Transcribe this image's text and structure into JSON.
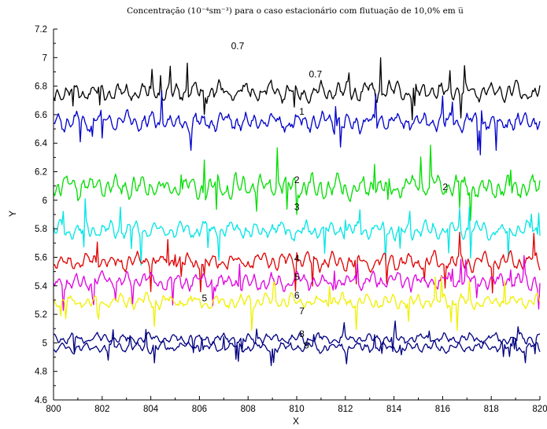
{
  "chart_data": {
    "type": "line",
    "title": "Concentração (10⁻⁴sm⁻³)  para o caso estacionário com flutuação de 10,0% em u̅",
    "xlabel": "X",
    "ylabel": "Y",
    "xlim": [
      800,
      820
    ],
    "ylim": [
      4.6,
      7.2
    ],
    "xticks": [
      "800",
      "802",
      "804",
      "806",
      "808",
      "810",
      "812",
      "814",
      "816",
      "818",
      "820"
    ],
    "yticks": [
      "4.6",
      "4.8",
      "5",
      "5.2",
      "5.4",
      "5.6",
      "5.8",
      "6",
      "6.2",
      "6.4",
      "6.6",
      "6.8",
      "7",
      "7.2"
    ],
    "grid": false,
    "legend": "none",
    "series": [
      {
        "label": "0.7",
        "color": "#000000",
        "base": 6.76,
        "amp": 0.09,
        "seed": 11
      },
      {
        "label": "1",
        "color": "#0000cc",
        "base": 6.55,
        "amp": 0.09,
        "seed": 23
      },
      {
        "label": "2",
        "color": "#00dd00",
        "base": 6.09,
        "amp": 0.11,
        "seed": 37
      },
      {
        "label": "3",
        "color": "#00e5e5",
        "base": 5.79,
        "amp": 0.08,
        "seed": 41
      },
      {
        "label": "4",
        "color": "#e00000",
        "base": 5.57,
        "amp": 0.08,
        "seed": 53
      },
      {
        "label": "5",
        "color": "#e000e0",
        "base": 5.43,
        "amp": 0.08,
        "seed": 67
      },
      {
        "label": "6",
        "color": "#f0f000",
        "base": 5.29,
        "amp": 0.07,
        "seed": 71
      },
      {
        "label": "7",
        "color": "#000080",
        "base": 5.03,
        "amp": 0.05,
        "seed": 83
      },
      {
        "label": "8",
        "color": "#000080",
        "base": 4.97,
        "amp": 0.05,
        "seed": 97
      }
    ],
    "annotations": [
      {
        "text": "0.7",
        "x": 807.3,
        "y": 7.06
      },
      {
        "text": "0.7",
        "x": 810.5,
        "y": 6.86
      },
      {
        "text": "1",
        "x": 810.1,
        "y": 6.6
      },
      {
        "text": "2",
        "x": 809.9,
        "y": 6.12
      },
      {
        "text": "2",
        "x": 816.0,
        "y": 6.07
      },
      {
        "text": "3",
        "x": 809.9,
        "y": 5.93
      },
      {
        "text": "4",
        "x": 809.9,
        "y": 5.57
      },
      {
        "text": "5",
        "x": 809.9,
        "y": 5.44
      },
      {
        "text": "5",
        "x": 806.1,
        "y": 5.29
      },
      {
        "text": "6",
        "x": 809.9,
        "y": 5.31
      },
      {
        "text": "7",
        "x": 810.1,
        "y": 5.2
      },
      {
        "text": "8",
        "x": 810.1,
        "y": 5.04
      },
      {
        "text": "9",
        "x": 810.3,
        "y": 4.96
      }
    ]
  }
}
